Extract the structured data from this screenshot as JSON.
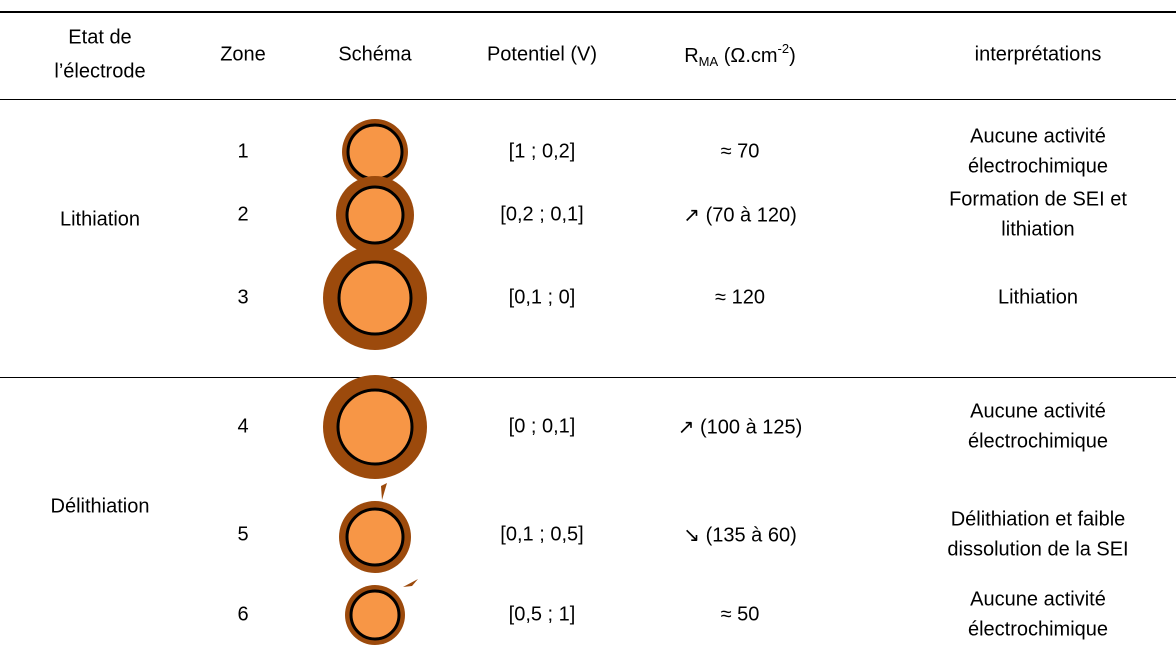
{
  "table": {
    "header": [
      [
        "Etat de",
        "l’électrode"
      ],
      "Zone",
      "Schéma",
      "Potentiel (V)",
      {
        "base": "R",
        "subscript": "MA",
        "unit": " (Ω.cm",
        "exponent": "-2",
        "close": ")"
      },
      "interprétations"
    ],
    "groups": [
      {
        "label": "Lithiation"
      },
      {
        "label": "Délithiation"
      }
    ],
    "rows": [
      {
        "zone": "1",
        "potential": "[1 ; 0,2]",
        "resistance": "≈ 70",
        "interpretation": [
          "Aucune activité",
          "électrochimique"
        ]
      },
      {
        "zone": "2",
        "potential": "[0,2 ; 0,1]",
        "resistance": "↗ (70 à 120)",
        "interpretation": [
          "Formation de SEI et",
          "lithiation"
        ]
      },
      {
        "zone": "3",
        "potential": "[0,1 ; 0]",
        "resistance": "≈ 120",
        "interpretation": [
          "Lithiation"
        ]
      },
      {
        "zone": "4",
        "potential": "[0 ; 0,1]",
        "resistance": "↗ (100 à 125)",
        "interpretation": [
          "Aucune activité",
          "électrochimique"
        ]
      },
      {
        "zone": "5",
        "potential": "[0,1 ; 0,5]",
        "resistance": "↘ (135 à 60)",
        "interpretation": [
          "Délithiation et faible",
          "dissolution de la SEI"
        ]
      },
      {
        "zone": "6",
        "potential": "[0,5 ; 1]",
        "resistance": "≈ 50",
        "interpretation": [
          "Aucune activité",
          "électrochimique"
        ]
      }
    ]
  }
}
